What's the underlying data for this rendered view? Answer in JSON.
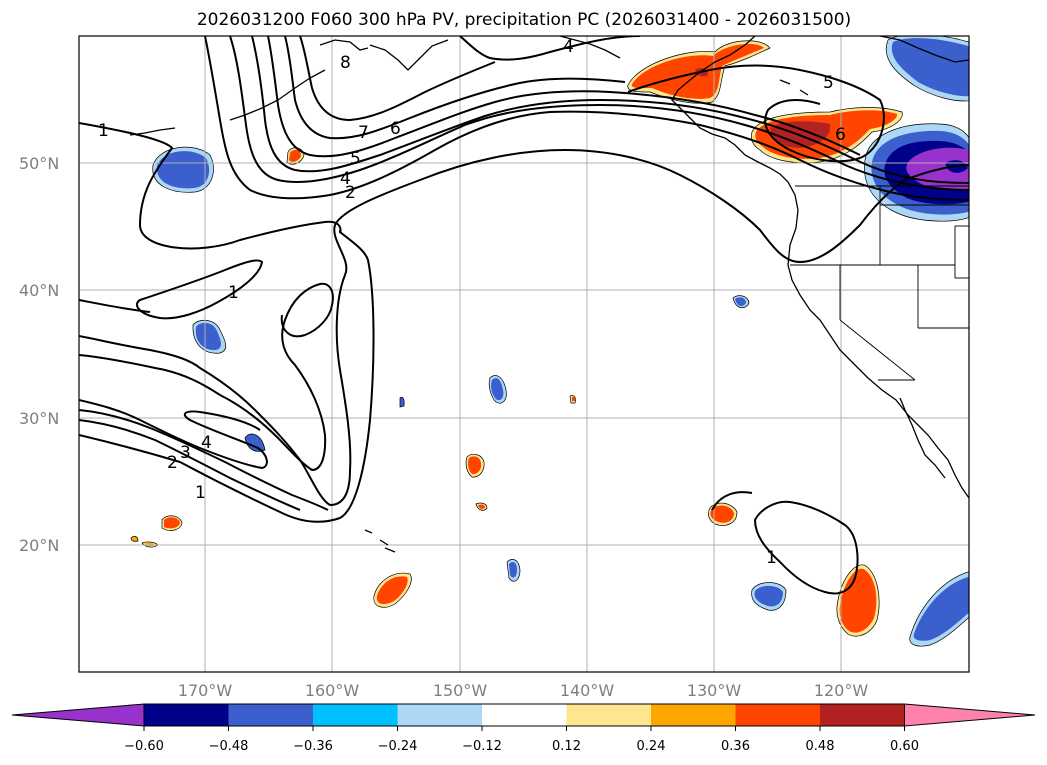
{
  "title": "2026031200 F060 300 hPa PV, precipitation PC (2026031400 - 2026031500)",
  "latitude_labels": [
    "50°N",
    "40°N",
    "30°N",
    "20°N"
  ],
  "longitude_labels": [
    "170°W",
    "160°W",
    "150°W",
    "140°W",
    "130°W",
    "120°W"
  ],
  "pv_contour_labels": [
    "1",
    "1",
    "1",
    "1",
    "2",
    "2",
    "3",
    "4",
    "4",
    "4",
    "5",
    "5",
    "6",
    "6",
    "7",
    "8"
  ],
  "colorbar": {
    "tick_labels": [
      "−0.60",
      "−0.48",
      "−0.36",
      "−0.24",
      "−0.12",
      "0.12",
      "0.24",
      "0.36",
      "0.48",
      "0.60"
    ],
    "colors": [
      "#9932cc",
      "#00008b",
      "#3b5fcd",
      "#00bfff",
      "#add8f5",
      "#ffffff",
      "#fde68f",
      "#ffa500",
      "#ff4500",
      "#b22222",
      "#ff82ab"
    ]
  },
  "colors": {
    "neg_weak": "#add8f5",
    "neg_mid": "#3b5fcd",
    "neg_strong": "#00008b",
    "neg_extreme": "#9932cc",
    "pos_weak": "#fde68f",
    "pos_mid": "#ffa500",
    "pos_strong": "#ff4500",
    "pos_very": "#b22222"
  }
}
